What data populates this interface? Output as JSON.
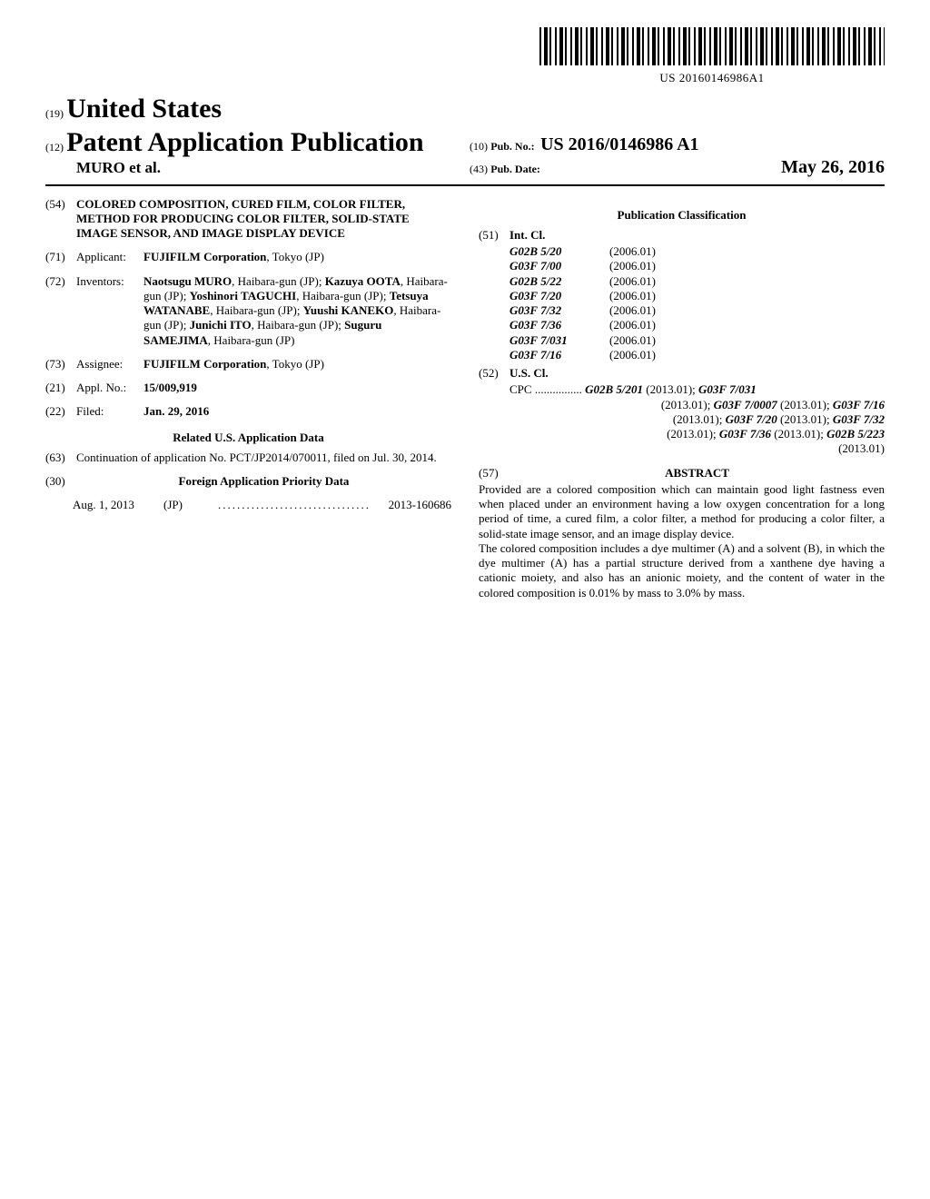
{
  "barcode_number": "US 20160146986A1",
  "header": {
    "code19": "(19)",
    "country": "United States",
    "code12": "(12)",
    "pub_type": "Patent Application Publication",
    "authors_line": "MURO et al.",
    "code10": "(10)",
    "pub_no_label": "Pub. No.:",
    "pub_no": "US 2016/0146986 A1",
    "code43": "(43)",
    "pub_date_label": "Pub. Date:",
    "pub_date": "May 26, 2016"
  },
  "left": {
    "f54": {
      "num": "(54)",
      "title": "COLORED COMPOSITION, CURED FILM, COLOR FILTER, METHOD FOR PRODUCING COLOR FILTER, SOLID-STATE IMAGE SENSOR, AND IMAGE DISPLAY DEVICE"
    },
    "f71": {
      "num": "(71)",
      "label": "Applicant:",
      "value": "FUJIFILM Corporation",
      "loc": ", Tokyo (JP)"
    },
    "f72": {
      "num": "(72)",
      "label": "Inventors:",
      "value": "Naotsugu MURO, Haibara-gun (JP); Kazuya OOTA, Haibara-gun (JP); Yoshinori TAGUCHI, Haibara-gun (JP); Tetsuya WATANABE, Haibara-gun (JP); Yuushi KANEKO, Haibara-gun (JP); Junichi ITO, Haibara-gun (JP); Suguru SAMEJIMA, Haibara-gun (JP)"
    },
    "f73": {
      "num": "(73)",
      "label": "Assignee:",
      "value": "FUJIFILM Corporation",
      "loc": ", Tokyo (JP)"
    },
    "f21": {
      "num": "(21)",
      "label": "Appl. No.:",
      "value": "15/009,919"
    },
    "f22": {
      "num": "(22)",
      "label": "Filed:",
      "value": "Jan. 29, 2016"
    },
    "related_title": "Related U.S. Application Data",
    "f63": {
      "num": "(63)",
      "value": "Continuation of application No. PCT/JP2014/070011, filed on Jul. 30, 2014."
    },
    "f30": {
      "num": "(30)",
      "title": "Foreign Application Priority Data"
    },
    "priority": {
      "date": "Aug. 1, 2013",
      "cc": "(JP)",
      "num": "2013-160686"
    }
  },
  "right": {
    "class_title": "Publication Classification",
    "f51": {
      "num": "(51)",
      "label": "Int. Cl."
    },
    "ipc": [
      {
        "code": "G02B 5/20",
        "year": "(2006.01)"
      },
      {
        "code": "G03F 7/00",
        "year": "(2006.01)"
      },
      {
        "code": "G02B 5/22",
        "year": "(2006.01)"
      },
      {
        "code": "G03F 7/20",
        "year": "(2006.01)"
      },
      {
        "code": "G03F 7/32",
        "year": "(2006.01)"
      },
      {
        "code": "G03F 7/36",
        "year": "(2006.01)"
      },
      {
        "code": "G03F 7/031",
        "year": "(2006.01)"
      },
      {
        "code": "G03F 7/16",
        "year": "(2006.01)"
      }
    ],
    "f52": {
      "num": "(52)",
      "label": "U.S. Cl."
    },
    "cpc_prefix": "CPC ",
    "cpc_dots": "................",
    "cpc": [
      {
        "code": "G02B 5/201",
        "date": "(2013.01)"
      },
      {
        "code": "G03F 7/031",
        "date": "(2013.01)"
      },
      {
        "code": "G03F 7/0007",
        "date": "(2013.01)"
      },
      {
        "code": "G03F 7/16",
        "date": "(2013.01)"
      },
      {
        "code": "G03F 7/20",
        "date": "(2013.01)"
      },
      {
        "code": "G03F 7/32",
        "date": "(2013.01)"
      },
      {
        "code": "G03F 7/36",
        "date": "(2013.01)"
      },
      {
        "code": "G02B 5/223",
        "date": "(2013.01)"
      }
    ],
    "f57": {
      "num": "(57)",
      "label": "ABSTRACT"
    },
    "abstract_p1": "Provided are a colored composition which can maintain good light fastness even when placed under an environment having a low oxygen concentration for a long period of time, a cured film, a color filter, a method for producing a color filter, a solid-state image sensor, and an image display device.",
    "abstract_p2": "The colored composition includes a dye multimer (A) and a solvent (B), in which the dye multimer (A) has a partial structure derived from a xanthene dye having a cationic moiety, and also has an anionic moiety, and the content of water in the colored composition is 0.01% by mass to 3.0% by mass."
  }
}
